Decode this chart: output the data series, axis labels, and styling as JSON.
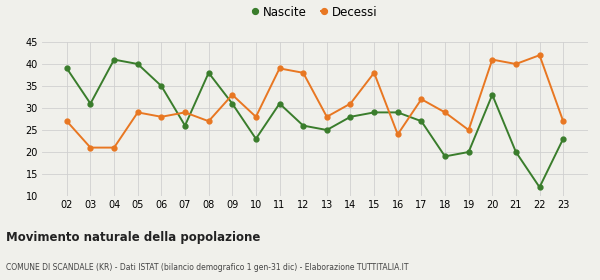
{
  "years": [
    "02",
    "03",
    "04",
    "05",
    "06",
    "07",
    "08",
    "09",
    "10",
    "11",
    "12",
    "13",
    "14",
    "15",
    "16",
    "17",
    "18",
    "19",
    "20",
    "21",
    "22",
    "23"
  ],
  "nascite": [
    39,
    31,
    41,
    40,
    35,
    26,
    38,
    31,
    23,
    31,
    26,
    25,
    28,
    29,
    29,
    27,
    19,
    20,
    33,
    20,
    12,
    23
  ],
  "decessi": [
    27,
    21,
    21,
    29,
    28,
    29,
    27,
    33,
    28,
    39,
    38,
    28,
    31,
    38,
    24,
    32,
    29,
    25,
    41,
    40,
    42,
    27
  ],
  "nascite_color": "#3a7d2c",
  "decessi_color": "#e87722",
  "title": "Movimento naturale della popolazione",
  "subtitle": "COMUNE DI SCANDALE (KR) - Dati ISTAT (bilancio demografico 1 gen-31 dic) - Elaborazione TUTTITALIA.IT",
  "ylim": [
    10,
    45
  ],
  "yticks": [
    10,
    15,
    20,
    25,
    30,
    35,
    40,
    45
  ],
  "legend_nascite": "Nascite",
  "legend_decessi": "Decessi",
  "bg_color": "#f0f0eb",
  "grid_color": "#d0d0d0"
}
